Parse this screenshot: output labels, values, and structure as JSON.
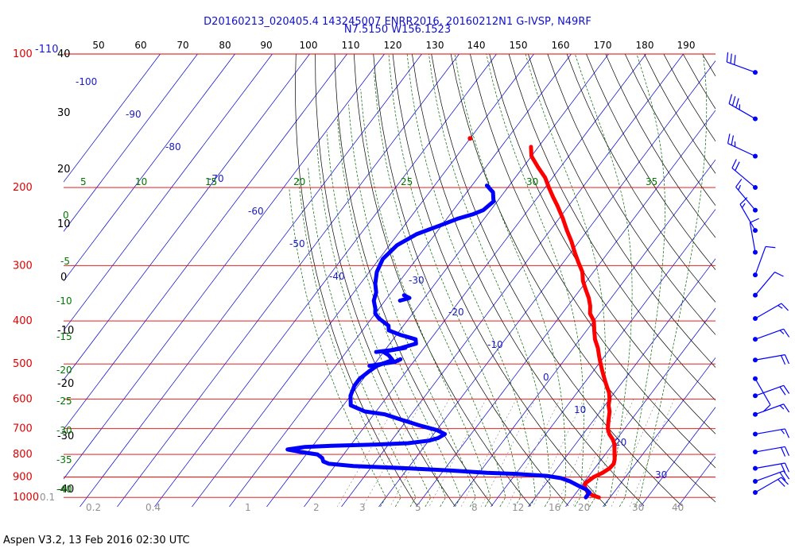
{
  "header": {
    "line1": "D20160213_020405.4 143245007 ENRR2016, 20160212N1 G-IVSP, N49RF",
    "line2": "N7.5150 W156.1523"
  },
  "footer": "Aspen V3.2, 13 Feb 2016  02:30 UTC",
  "chart_data": {
    "type": "skew-t",
    "pressure_labels": [
      "100",
      "200",
      "300",
      "400",
      "500",
      "600",
      "700",
      "800",
      "900",
      "1000"
    ],
    "pressure_levels": [
      100,
      200,
      300,
      400,
      500,
      600,
      700,
      800,
      900,
      1000
    ],
    "top_labels": [
      "50",
      "60",
      "70",
      "80",
      "90",
      "100",
      "110",
      "120",
      "130",
      "140",
      "150",
      "160",
      "170",
      "180",
      "190"
    ],
    "top_corner_labels": {
      "left": "-110",
      "right": "40"
    },
    "left_height_labels": [
      "40",
      "30",
      "20",
      "10",
      "0",
      "-10",
      "-20",
      "-30",
      "-40"
    ],
    "isotherm_labels": [
      "-100",
      "-90",
      "-80",
      "-70",
      "-60",
      "-50",
      "-40",
      "-30",
      "-20",
      "-10",
      "0",
      "10",
      "20",
      "30"
    ],
    "isotherm_label_values": [
      -100,
      -90,
      -80,
      -70,
      -60,
      -50,
      -40,
      -30,
      -20,
      -10,
      0,
      10,
      20,
      30
    ],
    "theta_e_labels": [
      "20",
      "25",
      "30",
      "35"
    ],
    "theta_e_values": [
      20,
      25,
      30,
      35
    ],
    "dry_adiabat_labels": [
      "5",
      "10",
      "15",
      "0",
      "-5",
      "-10",
      "-15",
      "-20",
      "-25",
      "-30",
      "-35",
      "-40"
    ],
    "mixing_ratio_labels": [
      "0.1",
      "0.2",
      "0.4",
      "1",
      "2",
      "3",
      "5",
      "8",
      "12",
      "16",
      "20",
      "30",
      "40"
    ],
    "temperature_profile": [
      [
        1000,
        27
      ],
      [
        990,
        25
      ],
      [
        975,
        23
      ],
      [
        960,
        22
      ],
      [
        945,
        21
      ],
      [
        930,
        20.5
      ],
      [
        915,
        21
      ],
      [
        900,
        21.5
      ],
      [
        880,
        23
      ],
      [
        860,
        24
      ],
      [
        840,
        24.2
      ],
      [
        820,
        23.5
      ],
      [
        800,
        22.5
      ],
      [
        780,
        21.5
      ],
      [
        760,
        20.5
      ],
      [
        740,
        19
      ],
      [
        720,
        17
      ],
      [
        700,
        15.5
      ],
      [
        680,
        14.5
      ],
      [
        660,
        13.5
      ],
      [
        640,
        12.5
      ],
      [
        620,
        11
      ],
      [
        600,
        10
      ],
      [
        580,
        8.5
      ],
      [
        560,
        6.5
      ],
      [
        540,
        4.5
      ],
      [
        520,
        2.5
      ],
      [
        500,
        0.5
      ],
      [
        480,
        -1.5
      ],
      [
        460,
        -3.5
      ],
      [
        440,
        -6
      ],
      [
        420,
        -8
      ],
      [
        400,
        -10
      ],
      [
        385,
        -12.5
      ],
      [
        370,
        -14
      ],
      [
        355,
        -16
      ],
      [
        340,
        -18.5
      ],
      [
        325,
        -21
      ],
      [
        310,
        -23
      ],
      [
        295,
        -26
      ],
      [
        280,
        -29
      ],
      [
        265,
        -32
      ],
      [
        250,
        -35.5
      ],
      [
        235,
        -39
      ],
      [
        220,
        -43
      ],
      [
        210,
        -46
      ],
      [
        200,
        -49
      ],
      [
        190,
        -52
      ],
      [
        180,
        -56
      ],
      [
        170,
        -60
      ],
      [
        162,
        -62
      ]
    ],
    "dewpoint_profile": [
      [
        1000,
        23.5
      ],
      [
        975,
        23.5
      ],
      [
        960,
        22
      ],
      [
        940,
        19
      ],
      [
        920,
        16
      ],
      [
        905,
        13
      ],
      [
        895,
        9
      ],
      [
        885,
        0
      ],
      [
        880,
        -8
      ],
      [
        870,
        -18
      ],
      [
        860,
        -30
      ],
      [
        850,
        -45
      ],
      [
        840,
        -52
      ],
      [
        830,
        -54
      ],
      [
        815,
        -55
      ],
      [
        800,
        -57
      ],
      [
        790,
        -62
      ],
      [
        780,
        -66
      ],
      [
        770,
        -62
      ],
      [
        765,
        -55
      ],
      [
        760,
        -43
      ],
      [
        755,
        -35
      ],
      [
        745,
        -30
      ],
      [
        735,
        -28
      ],
      [
        720,
        -27
      ],
      [
        705,
        -30
      ],
      [
        690,
        -35
      ],
      [
        670,
        -41
      ],
      [
        650,
        -47
      ],
      [
        640,
        -53
      ],
      [
        620,
        -58
      ],
      [
        590,
        -60
      ],
      [
        560,
        -61
      ],
      [
        540,
        -61
      ],
      [
        520,
        -60
      ],
      [
        505,
        -59
      ],
      [
        495,
        -57
      ],
      [
        490,
        -56
      ],
      [
        478,
        -58
      ],
      [
        470,
        -60
      ],
      [
        460,
        -56
      ],
      [
        450,
        -53
      ],
      [
        440,
        -54
      ],
      [
        430,
        -59
      ],
      [
        420,
        -63
      ],
      [
        410,
        -64
      ],
      [
        395,
        -68
      ],
      [
        385,
        -70
      ],
      [
        375,
        -71
      ],
      [
        360,
        -73
      ],
      [
        345,
        -74
      ],
      [
        330,
        -76
      ],
      [
        310,
        -78
      ],
      [
        290,
        -79
      ],
      [
        270,
        -78
      ],
      [
        255,
        -75
      ],
      [
        245,
        -71
      ],
      [
        240,
        -69
      ],
      [
        235,
        -67
      ],
      [
        230,
        -64
      ],
      [
        225,
        -62
      ],
      [
        215,
        -61
      ],
      [
        205,
        -63
      ],
      [
        198,
        -66
      ]
    ],
    "dewpoint_spikes": [
      [
        [
          505,
          -61
        ],
        [
          495,
          -55
        ],
        [
          488,
          -54
        ]
      ],
      [
        [
          470,
          -62
        ],
        [
          465,
          -58
        ],
        [
          460,
          -55
        ]
      ],
      [
        [
          360,
          -66
        ],
        [
          355,
          -64
        ],
        [
          350,
          -66
        ]
      ]
    ],
    "isolated_temperature_point": [
      155,
      -80
    ],
    "wind_barbs": [
      {
        "p": 110,
        "dir": 290,
        "kt": 30
      },
      {
        "p": 140,
        "dir": 300,
        "kt": 35
      },
      {
        "p": 170,
        "dir": 295,
        "kt": 25
      },
      {
        "p": 200,
        "dir": 310,
        "kt": 20
      },
      {
        "p": 225,
        "dir": 320,
        "kt": 15
      },
      {
        "p": 250,
        "dir": 330,
        "kt": 15
      },
      {
        "p": 280,
        "dir": 350,
        "kt": 10
      },
      {
        "p": 315,
        "dir": 20,
        "kt": 10
      },
      {
        "p": 350,
        "dir": 40,
        "kt": 10
      },
      {
        "p": 395,
        "dir": 60,
        "kt": 15
      },
      {
        "p": 440,
        "dir": 70,
        "kt": 15
      },
      {
        "p": 490,
        "dir": 80,
        "kt": 20
      },
      {
        "p": 540,
        "dir": 150,
        "kt": 10
      },
      {
        "p": 590,
        "dir": 70,
        "kt": 20
      },
      {
        "p": 650,
        "dir": 70,
        "kt": 15
      },
      {
        "p": 720,
        "dir": 80,
        "kt": 15
      },
      {
        "p": 790,
        "dir": 80,
        "kt": 20
      },
      {
        "p": 860,
        "dir": 80,
        "kt": 20
      },
      {
        "p": 920,
        "dir": 70,
        "kt": 20
      },
      {
        "p": 975,
        "dir": 60,
        "kt": 20
      }
    ],
    "colors": {
      "temperature": "#ff0000",
      "dewpoint": "#0000ff",
      "isobar": "#e00000",
      "isotherm": "#0000cc",
      "dry_adiabat": "#000000",
      "moist_adiabat": "#006600",
      "mixing_ratio": "#808080",
      "isotherm_label": "#1a1acc",
      "theta_label": "#007700",
      "height_label": "#000000"
    }
  }
}
